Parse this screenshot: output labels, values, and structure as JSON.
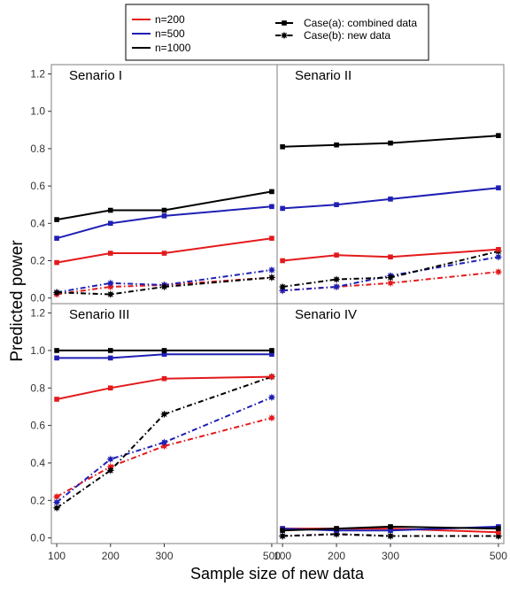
{
  "chart_data": {
    "type": "line",
    "xlabel": "Sample size of new data",
    "ylabel": "Predicted power",
    "x": [
      100,
      200,
      300,
      500
    ],
    "xlim": [
      90,
      510
    ],
    "ylim": [
      -0.03,
      1.25
    ],
    "yticks": [
      0.0,
      0.2,
      0.4,
      0.6,
      0.8,
      1.0,
      1.2
    ],
    "ytick_labels": [
      "0.0",
      "0.2",
      "0.4",
      "0.6",
      "0.8",
      "1.0",
      "1.2"
    ],
    "xtick_labels": [
      "100",
      "200",
      "300",
      "500"
    ],
    "colors": {
      "n200": "#e31a1c",
      "n500": "#1f1fb4",
      "n1000": "#000000"
    },
    "legend": {
      "sizes": [
        {
          "key": "n200",
          "label": "n=200",
          "color": "#e31a1c"
        },
        {
          "key": "n500",
          "label": "n=500",
          "color": "#1f1fb4"
        },
        {
          "key": "n1000",
          "label": "n=1000",
          "color": "#000000"
        }
      ],
      "cases": [
        {
          "key": "a",
          "label": "Case(a): combined data",
          "style": "solid",
          "marker": "square"
        },
        {
          "key": "b",
          "label": "Case(b): new data",
          "style": "dotdash",
          "marker": "star"
        }
      ]
    },
    "panels": [
      {
        "label": "Senario I",
        "series": {
          "a": {
            "n200": [
              0.19,
              0.24,
              0.24,
              0.32
            ],
            "n500": [
              0.32,
              0.4,
              0.44,
              0.49
            ],
            "n1000": [
              0.42,
              0.47,
              0.47,
              0.57
            ]
          },
          "b": {
            "n200": [
              0.02,
              0.06,
              0.07,
              0.11
            ],
            "n500": [
              0.03,
              0.08,
              0.07,
              0.15
            ],
            "n1000": [
              0.03,
              0.02,
              0.06,
              0.11
            ]
          }
        }
      },
      {
        "label": "Senario II",
        "series": {
          "a": {
            "n200": [
              0.2,
              0.23,
              0.22,
              0.26
            ],
            "n500": [
              0.48,
              0.5,
              0.53,
              0.59
            ],
            "n1000": [
              0.81,
              0.82,
              0.83,
              0.87
            ]
          },
          "b": {
            "n200": [
              0.04,
              0.06,
              0.08,
              0.14
            ],
            "n500": [
              0.04,
              0.06,
              0.12,
              0.22
            ],
            "n1000": [
              0.06,
              0.1,
              0.11,
              0.25
            ]
          }
        }
      },
      {
        "label": "Senario III",
        "series": {
          "a": {
            "n200": [
              0.74,
              0.8,
              0.85,
              0.86
            ],
            "n500": [
              0.96,
              0.96,
              0.98,
              0.98
            ],
            "n1000": [
              1.0,
              1.0,
              1.0,
              1.0
            ]
          },
          "b": {
            "n200": [
              0.22,
              0.38,
              0.49,
              0.64
            ],
            "n500": [
              0.19,
              0.42,
              0.51,
              0.75
            ],
            "n1000": [
              0.16,
              0.36,
              0.66,
              0.86
            ]
          }
        }
      },
      {
        "label": "Senario IV",
        "series": {
          "a": {
            "n200": [
              0.05,
              0.05,
              0.05,
              0.03
            ],
            "n500": [
              0.05,
              0.04,
              0.04,
              0.06
            ],
            "n1000": [
              0.04,
              0.05,
              0.06,
              0.05
            ]
          },
          "b": {
            "n200": [
              0.01,
              0.02,
              0.01,
              0.01
            ],
            "n500": [
              0.01,
              0.02,
              0.01,
              0.01
            ],
            "n1000": [
              0.01,
              0.02,
              0.01,
              0.01
            ]
          }
        }
      }
    ]
  }
}
